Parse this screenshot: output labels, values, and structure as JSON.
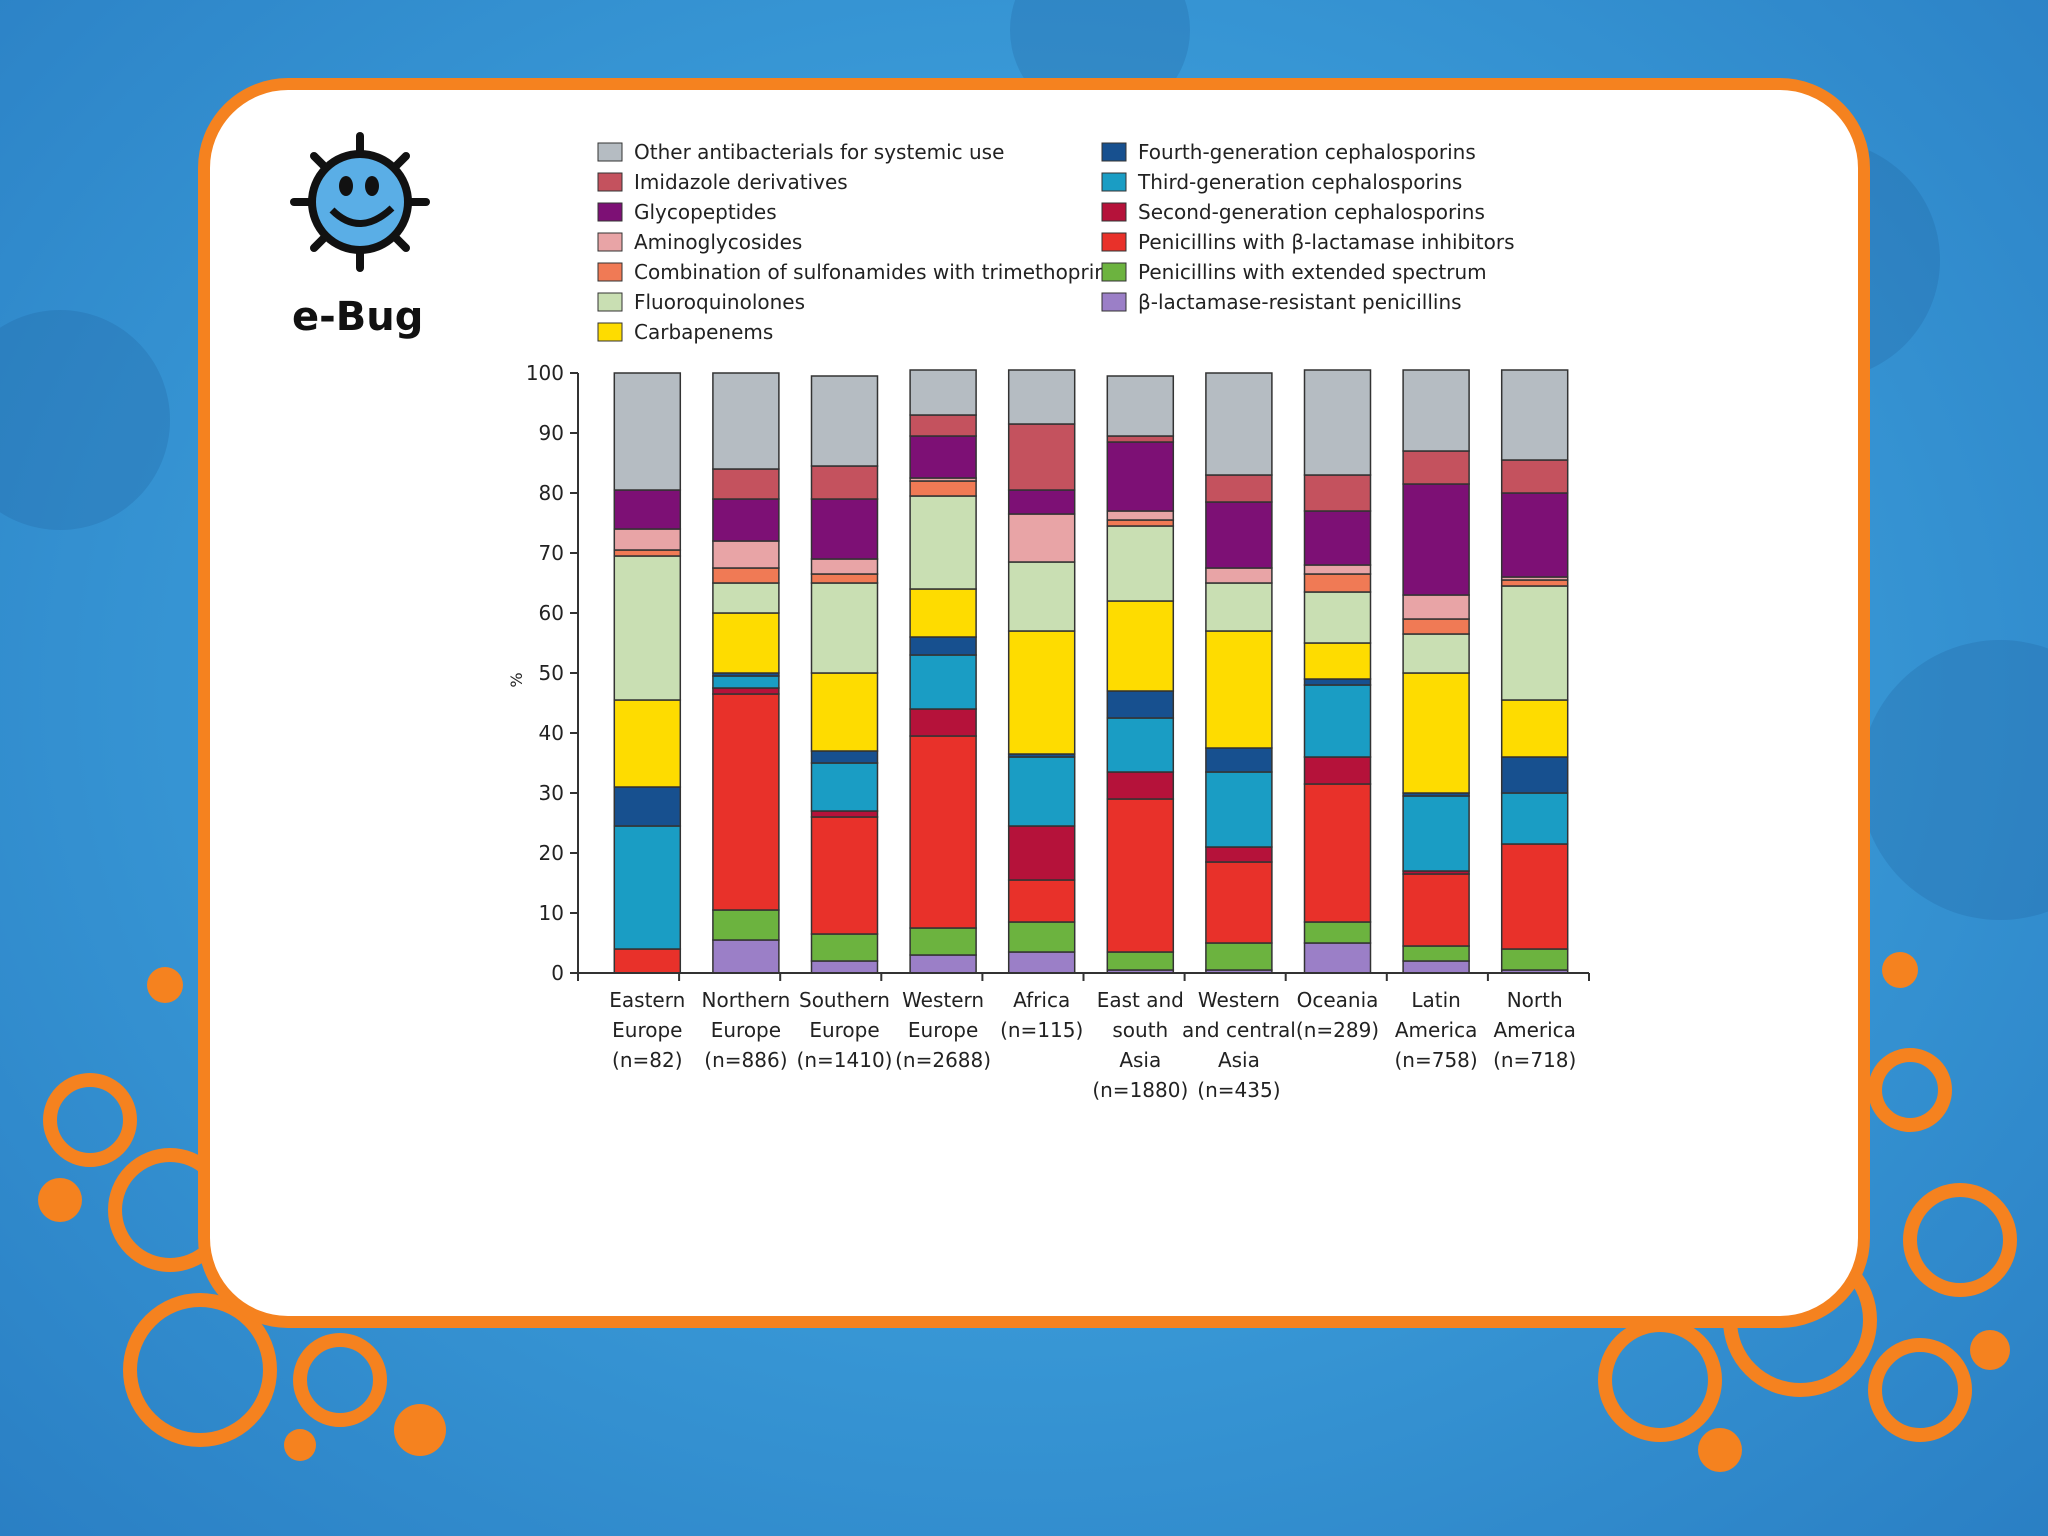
{
  "logo": {
    "text": "e-Bug"
  },
  "colors": {
    "frame": "#f5821f",
    "background": "#3a9bd8"
  },
  "chart_data": {
    "type": "bar",
    "stacked": true,
    "ylabel": "%",
    "ylim": [
      0,
      100
    ],
    "yticks": [
      "0",
      "10",
      "20",
      "30",
      "40",
      "50",
      "60",
      "70",
      "80",
      "90",
      "100"
    ],
    "legend_position": "top",
    "categories": [
      [
        "Eastern",
        "Europe",
        "(n=82)"
      ],
      [
        "Northern",
        "Europe",
        "(n=886)"
      ],
      [
        "Southern",
        "Europe",
        "(n=1410)"
      ],
      [
        "Western",
        "Europe",
        "(n=2688)"
      ],
      [
        "Africa",
        "(n=115)"
      ],
      [
        "East and",
        "south",
        "Asia",
        "(n=1880)"
      ],
      [
        "Western",
        "and central",
        "Asia",
        "(n=435)"
      ],
      [
        "Oceania",
        "(n=289)"
      ],
      [
        "Latin",
        "America",
        "(n=758)"
      ],
      [
        "North",
        "America",
        "(n=718)"
      ]
    ],
    "series": [
      {
        "name": "β-lactamase-resistant penicillins",
        "color": "#9b7fc7",
        "values": [
          0,
          5.5,
          2,
          3,
          3.5,
          0.5,
          0.5,
          5,
          2,
          0.5
        ]
      },
      {
        "name": "Penicillins with extended spectrum",
        "color": "#6cb33f",
        "values": [
          0,
          5,
          4.5,
          4.5,
          5,
          3,
          4.5,
          3.5,
          2.5,
          3.5
        ]
      },
      {
        "name": "Penicillins with β-lactamase inhibitors",
        "color": "#e8312a",
        "values": [
          4,
          36,
          19.5,
          32,
          7,
          25.5,
          13.5,
          23,
          12,
          17.5
        ]
      },
      {
        "name": "Second-generation cephalosporins",
        "color": "#b5123a",
        "values": [
          0,
          1,
          1,
          4.5,
          9,
          4.5,
          2.5,
          4.5,
          0.5,
          0
        ]
      },
      {
        "name": "Third-generation cephalosporins",
        "color": "#1a9dc4",
        "values": [
          20.5,
          2,
          8,
          9,
          11.5,
          9,
          12.5,
          12,
          12.5,
          8.5
        ]
      },
      {
        "name": "Fourth-generation cephalosporins",
        "color": "#17508f",
        "values": [
          6.5,
          0.5,
          2,
          3,
          0.5,
          4.5,
          4,
          1,
          0.5,
          6
        ]
      },
      {
        "name": "Carbapenems",
        "color": "#fedc00",
        "values": [
          14.5,
          10,
          13,
          8,
          20.5,
          15,
          19.5,
          6,
          20,
          9.5
        ]
      },
      {
        "name": "Fluoroquinolones",
        "color": "#c9dfb3",
        "values": [
          24,
          5,
          15,
          15.5,
          11.5,
          12.5,
          8,
          8.5,
          6.5,
          19
        ]
      },
      {
        "name": "Combination of sulfonamides with trimethoprim",
        "color": "#f07a55",
        "values": [
          1,
          2.5,
          1.5,
          2.5,
          0,
          1,
          0,
          3,
          2.5,
          1
        ]
      },
      {
        "name": "Aminoglycosides",
        "color": "#e8a4a6",
        "values": [
          3.5,
          4.5,
          2.5,
          0.5,
          8,
          1.5,
          2.5,
          1.5,
          4,
          0.5
        ]
      },
      {
        "name": "Glycopeptides",
        "color": "#7d1075",
        "values": [
          6.5,
          7,
          10,
          7,
          4,
          11.5,
          11,
          9,
          18.5,
          14
        ]
      },
      {
        "name": "Imidazole derivatives",
        "color": "#c4525e",
        "values": [
          0,
          5,
          5.5,
          3.5,
          11,
          1,
          4.5,
          6,
          5.5,
          5.5
        ]
      },
      {
        "name": "Other antibacterials for systemic use",
        "color": "#b5bcc2",
        "values": [
          19.5,
          16,
          15,
          7.5,
          9,
          10,
          17,
          17.5,
          13.5,
          15
        ]
      }
    ],
    "legend": {
      "left": [
        "Other antibacterials for systemic use",
        "Imidazole derivatives",
        "Glycopeptides",
        "Aminoglycosides",
        "Combination of sulfonamides with trimethoprim",
        "Fluoroquinolones",
        "Carbapenems"
      ],
      "right": [
        "Fourth-generation cephalosporins",
        "Third-generation cephalosporins",
        "Second-generation cephalosporins",
        "Penicillins with β-lactamase inhibitors",
        "Penicillins with extended spectrum",
        "β-lactamase-resistant penicillins"
      ]
    }
  }
}
